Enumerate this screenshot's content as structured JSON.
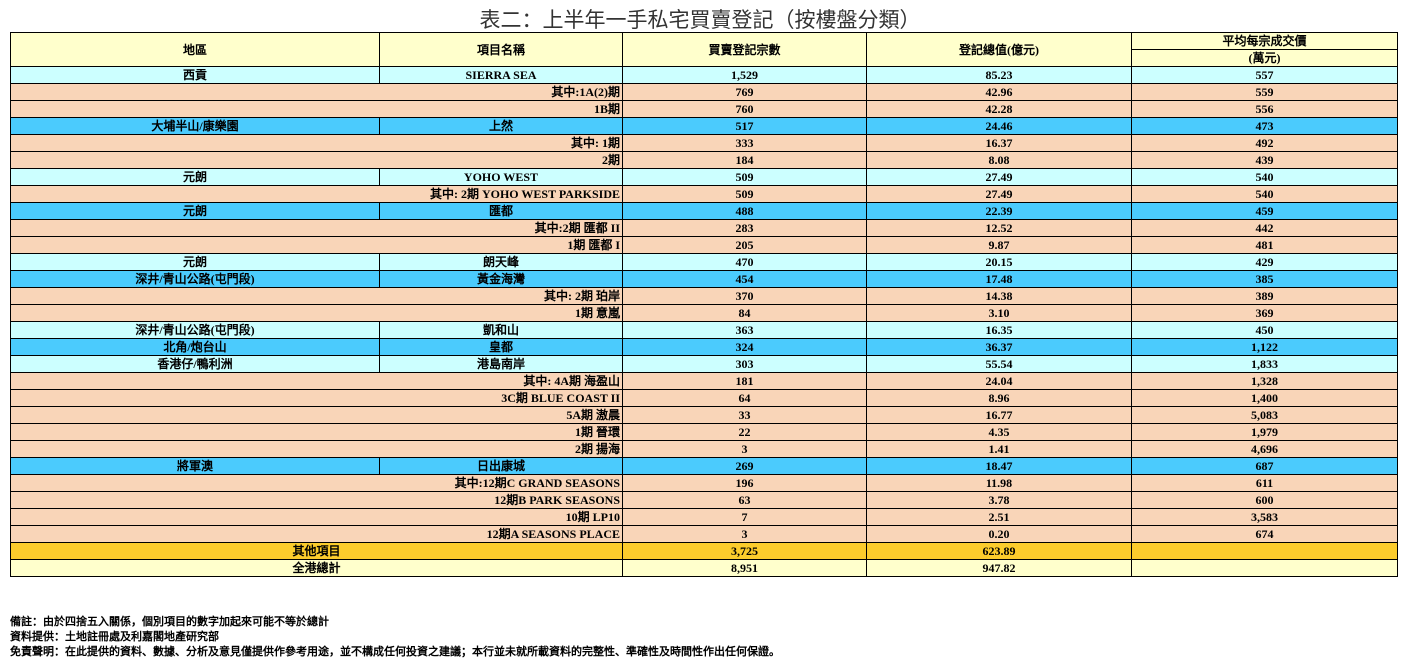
{
  "title": "表二：上半年一手私宅買賣登記（按樓盤分類）",
  "headers": {
    "district": "地區",
    "project": "項目名稱",
    "count": "買賣登記宗數",
    "value": "登記總值(億元)",
    "avg": "平均每宗成交價",
    "avg_unit": "(萬元)"
  },
  "colors": {
    "header": "#ffffcc",
    "cyan": "#ccffff",
    "peach": "#f9d5b8",
    "blue": "#4bcbfd",
    "gold": "#fccc2c"
  },
  "rows": [
    {
      "t": "c",
      "district": "西貢",
      "project": "SIERRA SEA",
      "count": "1,529",
      "value": "85.23",
      "avg": "557"
    },
    {
      "t": "p",
      "project": "其中:1A(2)期",
      "count": "769",
      "value": "42.96",
      "avg": "559"
    },
    {
      "t": "p",
      "project": "1B期",
      "count": "760",
      "value": "42.28",
      "avg": "556"
    },
    {
      "t": "b",
      "district": "大埔半山/康樂園",
      "project": "上然",
      "count": "517",
      "value": "24.46",
      "avg": "473"
    },
    {
      "t": "p",
      "project": "其中: 1期",
      "count": "333",
      "value": "16.37",
      "avg": "492"
    },
    {
      "t": "p",
      "project": "2期",
      "count": "184",
      "value": "8.08",
      "avg": "439"
    },
    {
      "t": "c",
      "district": "元朗",
      "project": "YOHO WEST",
      "count": "509",
      "value": "27.49",
      "avg": "540"
    },
    {
      "t": "p",
      "project": "其中: 2期 YOHO WEST PARKSIDE",
      "count": "509",
      "value": "27.49",
      "avg": "540"
    },
    {
      "t": "b",
      "district": "元朗",
      "project": "匯都",
      "count": "488",
      "value": "22.39",
      "avg": "459"
    },
    {
      "t": "p",
      "project": "其中:2期 匯都 II",
      "count": "283",
      "value": "12.52",
      "avg": "442"
    },
    {
      "t": "p",
      "project": "1期 匯都 I",
      "count": "205",
      "value": "9.87",
      "avg": "481"
    },
    {
      "t": "c",
      "district": "元朗",
      "project": "朗天峰",
      "count": "470",
      "value": "20.15",
      "avg": "429"
    },
    {
      "t": "b",
      "district": "深井/青山公路(屯門段)",
      "project": "黃金海灣",
      "count": "454",
      "value": "17.48",
      "avg": "385"
    },
    {
      "t": "p",
      "project": "其中: 2期 珀岸",
      "count": "370",
      "value": "14.38",
      "avg": "389"
    },
    {
      "t": "p",
      "project": "1期 意嵐",
      "count": "84",
      "value": "3.10",
      "avg": "369"
    },
    {
      "t": "c",
      "district": "深井/青山公路(屯門段)",
      "project": "凱和山",
      "count": "363",
      "value": "16.35",
      "avg": "450"
    },
    {
      "t": "b",
      "district": "北角/炮台山",
      "project": "皇都",
      "count": "324",
      "value": "36.37",
      "avg": "1,122"
    },
    {
      "t": "c",
      "district": "香港仔/鴨利洲",
      "project": "港島南岸",
      "count": "303",
      "value": "55.54",
      "avg": "1,833"
    },
    {
      "t": "p",
      "project": "其中: 4A期 海盈山",
      "count": "181",
      "value": "24.04",
      "avg": "1,328"
    },
    {
      "t": "p",
      "project": "3C期 BLUE COAST II",
      "count": "64",
      "value": "8.96",
      "avg": "1,400"
    },
    {
      "t": "p",
      "project": "5A期 滶晨",
      "count": "33",
      "value": "16.77",
      "avg": "5,083"
    },
    {
      "t": "p",
      "project": "1期 晉環",
      "count": "22",
      "value": "4.35",
      "avg": "1,979"
    },
    {
      "t": "p",
      "project": "2期 揚海",
      "count": "3",
      "value": "1.41",
      "avg": "4,696"
    },
    {
      "t": "b",
      "district": "將軍澳",
      "project": "日出康城",
      "count": "269",
      "value": "18.47",
      "avg": "687"
    },
    {
      "t": "p",
      "project": "其中:12期C GRAND SEASONS",
      "count": "196",
      "value": "11.98",
      "avg": "611"
    },
    {
      "t": "p",
      "project": "12期B PARK SEASONS",
      "count": "63",
      "value": "3.78",
      "avg": "600"
    },
    {
      "t": "p",
      "project": "10期 LP10",
      "count": "7",
      "value": "2.51",
      "avg": "3,583"
    },
    {
      "t": "p",
      "project": "12期A SEASONS PLACE",
      "count": "3",
      "value": "0.20",
      "avg": "674"
    },
    {
      "t": "g",
      "project": "其他項目",
      "count": "3,725",
      "value": "623.89",
      "avg": ""
    },
    {
      "t": "y",
      "project": "全港總計",
      "count": "8,951",
      "value": "947.82",
      "avg": ""
    }
  ],
  "notes": [
    "備註：由於四捨五入關係，個別項目的數字加起來可能不等於總計",
    "資料提供：土地註冊處及利嘉閣地產研究部",
    "免責聲明：在此提供的資料、數據、分析及意見僅提供作參考用途，並不構成任何投資之建議；本行並未就所載資料的完整性、準確性及時間性作出任何保證。"
  ]
}
